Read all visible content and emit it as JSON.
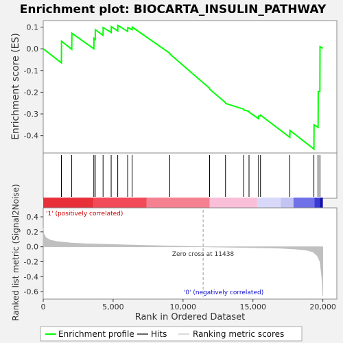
{
  "chart_data": {
    "type": "line",
    "title": "Enrichment plot: BIOCARTA_INSULIN_PATHWAY",
    "xlabel": "Rank in Ordered Dataset",
    "xlim": [
      0,
      21000
    ],
    "x_ticks": [
      0,
      5000,
      10000,
      15000,
      20000
    ],
    "x_tick_labels": [
      "0",
      "5,000",
      "10,000",
      "15,000",
      "20,000"
    ],
    "es_panel": {
      "ylabel": "Enrichment score (ES)",
      "ylim": [
        -0.48,
        0.13
      ],
      "y_ticks": [
        -0.4,
        -0.3,
        -0.2,
        -0.1,
        0.0,
        0.1
      ],
      "y_tick_labels": [
        "-0.4",
        "-0.3",
        "-0.2",
        "-0.1",
        "0.0",
        "0.1"
      ],
      "series": [
        {
          "name": "Enrichment profile",
          "color": "#00ff00",
          "x": [
            0,
            1300,
            1310,
            2040,
            2050,
            3620,
            3630,
            3720,
            3730,
            4280,
            4290,
            4860,
            4870,
            5330,
            5340,
            6040,
            6050,
            6360,
            6370,
            9050,
            9060,
            11900,
            11910,
            13040,
            13050,
            14340,
            14350,
            14720,
            14730,
            15400,
            15410,
            15540,
            15550,
            17640,
            17650,
            19360,
            19370,
            19660,
            19670,
            19790,
            19800,
            20000
          ],
          "y": [
            0.0,
            -0.065,
            0.035,
            -0.002,
            0.072,
            0.0,
            0.048,
            0.043,
            0.088,
            0.062,
            0.098,
            0.075,
            0.102,
            0.082,
            0.108,
            0.08,
            0.098,
            0.088,
            0.1,
            -0.02,
            -0.024,
            -0.182,
            -0.186,
            -0.248,
            -0.252,
            -0.278,
            -0.282,
            -0.288,
            -0.292,
            -0.322,
            -0.31,
            -0.308,
            -0.306,
            -0.408,
            -0.376,
            -0.462,
            -0.35,
            -0.362,
            -0.198,
            -0.196,
            0.01,
            0.002
          ]
        }
      ]
    },
    "hits": {
      "name": "Hits",
      "x": [
        1300,
        2040,
        3620,
        3720,
        4280,
        4860,
        5330,
        6040,
        6360,
        9050,
        11900,
        13040,
        14340,
        14720,
        15400,
        15540,
        17640,
        19360,
        19660,
        19790
      ]
    },
    "heatmap_bar": {
      "colors": [
        "#e8303a",
        "#f24a58",
        "#f48090",
        "#f9bfd8",
        "#d8d8f8",
        "#c4c4f4",
        "#7070e8",
        "#3a3ad8",
        "#1010a8"
      ],
      "stops": [
        0,
        3600,
        7400,
        11900,
        15300,
        17000,
        17900,
        19400,
        19800,
        20000
      ]
    },
    "metric_panel": {
      "ylabel": "Ranked list metric (Signal2Noise)",
      "ylim": [
        -0.7,
        0.52
      ],
      "y_ticks": [
        -0.6,
        -0.4,
        -0.2,
        0.0,
        0.2,
        0.4
      ],
      "y_tick_labels": [
        "-0.6",
        "-0.4",
        "-0.2",
        "0.0",
        "0.2",
        "0.4"
      ],
      "series": [
        {
          "name": "Ranking metric scores",
          "color": "#c0c0c0",
          "x": [
            0,
            50,
            200,
            500,
            1000,
            2000,
            3000,
            5000,
            7000,
            9000,
            11438,
            13000,
            15000,
            17000,
            18000,
            18800,
            19300,
            19600,
            19800,
            19950,
            20000
          ],
          "y": [
            0.25,
            0.17,
            0.12,
            0.09,
            0.07,
            0.05,
            0.04,
            0.03,
            0.02,
            0.01,
            0.0,
            -0.005,
            -0.012,
            -0.02,
            -0.03,
            -0.045,
            -0.07,
            -0.12,
            -0.2,
            -0.45,
            -0.66
          ]
        }
      ],
      "zero_cross_label": "Zero cross at 11438",
      "zero_cross_x": 11438,
      "pos_label": "'1' (positively correlated)",
      "neg_label": "'0' (negatively correlated)"
    },
    "legend": [
      {
        "label": "Enrichment profile",
        "color": "#00ff00"
      },
      {
        "label": "Hits",
        "color": "#000000"
      },
      {
        "label": "Ranking metric scores",
        "color": "#c0c0c0"
      }
    ],
    "legend_position": "bottom"
  }
}
